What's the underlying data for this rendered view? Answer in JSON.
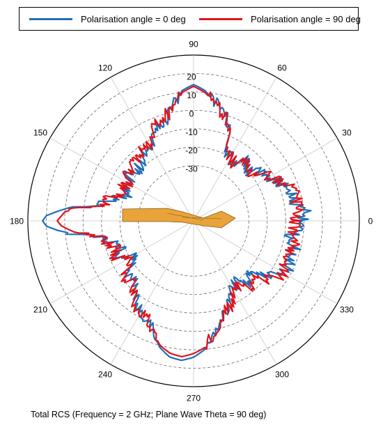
{
  "chart_data": {
    "type": "polar-line",
    "title": "",
    "caption": "Total RCS (Frequency = 2 GHz; Plane Wave Theta = 90 deg)",
    "angular_axis": {
      "unit": "deg",
      "direction": "counterclockwise",
      "zero_at": "right",
      "tick_labels": [
        "0",
        "30",
        "60",
        "90",
        "120",
        "150",
        "180",
        "210",
        "240",
        "270",
        "300",
        "330"
      ]
    },
    "radial_axis": {
      "range": [
        -60,
        30
      ],
      "tick_values": [
        -30,
        -20,
        -10,
        0,
        10,
        20
      ],
      "tick_labels": [
        "-30",
        "-20",
        "-10",
        "0",
        "10",
        "20"
      ],
      "gridline_style": "dashed"
    },
    "legend_position": "top",
    "colors": {
      "pol0": "#1f6fb8",
      "pol90": "#e0141c",
      "model": "#e8a43a",
      "model_edge": "#8a5a14"
    },
    "series": [
      {
        "name": "Polarisation angle = 0 deg",
        "color": "#1f6fb8",
        "angles": [
          0,
          5,
          10,
          15,
          20,
          25,
          30,
          35,
          40,
          45,
          50,
          55,
          60,
          65,
          70,
          75,
          80,
          85,
          90,
          95,
          100,
          105,
          110,
          115,
          120,
          125,
          130,
          135,
          140,
          145,
          150,
          155,
          160,
          165,
          170,
          172,
          174,
          176,
          178,
          180,
          182,
          184,
          186,
          188,
          190,
          195,
          200,
          205,
          210,
          215,
          220,
          225,
          230,
          235,
          240,
          245,
          250,
          255,
          260,
          265,
          270,
          275,
          280,
          285,
          290,
          295,
          300,
          305,
          310,
          315,
          320,
          325,
          330,
          335,
          340,
          345,
          350,
          355,
          360
        ],
        "values": [
          -1,
          1,
          -5,
          -3,
          -7,
          -9,
          -14,
          -12,
          -19,
          -20,
          -17,
          -24,
          -21,
          -18,
          -4,
          2,
          5,
          11,
          14,
          11,
          3,
          -3,
          -4,
          -9,
          -14,
          -13,
          -19,
          -18,
          -20,
          -16,
          -23,
          -19,
          -21,
          -14,
          -9,
          -2,
          8,
          14,
          20,
          22,
          20,
          14,
          6,
          -3,
          -8,
          -14,
          -19,
          -16,
          -22,
          -19,
          -13,
          -14,
          -10,
          -6,
          -3,
          -1,
          4,
          11,
          15,
          16,
          14,
          10,
          3,
          -5,
          -9,
          -12,
          -18,
          -20,
          -15,
          -19,
          -14,
          -9,
          -4,
          -2,
          -6,
          -3,
          -8,
          -3,
          -1
        ]
      },
      {
        "name": "Polarisation angle = 90 deg",
        "color": "#e0141c",
        "angles": [
          0,
          5,
          10,
          15,
          20,
          25,
          30,
          35,
          40,
          45,
          50,
          55,
          60,
          65,
          70,
          75,
          80,
          85,
          90,
          95,
          100,
          105,
          110,
          115,
          120,
          125,
          130,
          135,
          140,
          145,
          150,
          155,
          160,
          165,
          170,
          172,
          174,
          176,
          178,
          180,
          182,
          184,
          186,
          188,
          190,
          195,
          200,
          205,
          210,
          215,
          220,
          225,
          230,
          235,
          240,
          245,
          250,
          255,
          260,
          265,
          270,
          275,
          280,
          285,
          290,
          295,
          300,
          305,
          310,
          315,
          320,
          325,
          330,
          335,
          340,
          345,
          350,
          355,
          360
        ],
        "values": [
          -5,
          -3,
          -3,
          -4,
          -4,
          -9,
          -12,
          -15,
          -20,
          -19,
          -18,
          -22,
          -20,
          -16,
          -3,
          0,
          5,
          10,
          13,
          10,
          1,
          -1,
          -2,
          -7,
          -12,
          -10,
          -15,
          -14,
          -17,
          -14,
          -20,
          -17,
          -19,
          -12,
          -11,
          -6,
          4,
          10,
          12,
          14,
          12,
          8,
          2,
          -3,
          -9,
          -12,
          -16,
          -13,
          -19,
          -16,
          -11,
          -13,
          -9,
          -5,
          -3,
          -2,
          4,
          10,
          13,
          14,
          12,
          9,
          2,
          -4,
          -8,
          -10,
          -16,
          -18,
          -12,
          -17,
          -10,
          -6,
          -3,
          -5,
          -8,
          -3,
          -5,
          -5,
          -5
        ]
      }
    ]
  }
}
